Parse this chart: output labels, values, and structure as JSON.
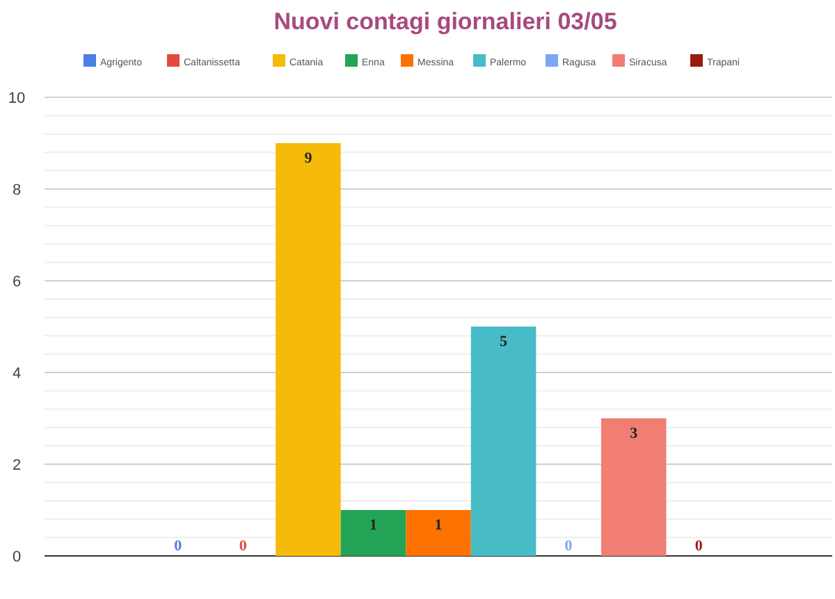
{
  "chart_data": {
    "type": "bar",
    "title": "Nuovi contagi giornalieri 03/05",
    "categories": [
      null
    ],
    "series": [
      {
        "name": "Agrigento",
        "color": "#4a7fe6",
        "values": [
          0
        ]
      },
      {
        "name": "Caltanissetta",
        "color": "#e5493c",
        "values": [
          0
        ]
      },
      {
        "name": "Catania",
        "color": "#f6bb0a",
        "values": [
          9
        ]
      },
      {
        "name": "Enna",
        "color": "#24a456",
        "values": [
          1
        ]
      },
      {
        "name": "Messina",
        "color": "#fd7200",
        "values": [
          1
        ]
      },
      {
        "name": "Palermo",
        "color": "#47bcc6",
        "values": [
          5
        ]
      },
      {
        "name": "Ragusa",
        "color": "#7ea6f4",
        "values": [
          0
        ]
      },
      {
        "name": "Siracusa",
        "color": "#f07e72",
        "values": [
          3
        ]
      },
      {
        "name": "Trapani",
        "color": "#9b1c0f",
        "values": [
          0
        ]
      }
    ],
    "ylim": [
      0,
      10
    ],
    "yticks": [
      0,
      {
        "value": 0.4,
        "label": null
      },
      {
        "value": 0.8,
        "label": null
      },
      {
        "value": 1.2,
        "label": null
      },
      {
        "value": 1.6,
        "label": null
      },
      2,
      {
        "value": 2.4,
        "label": null
      },
      {
        "value": 2.8,
        "label": null
      },
      {
        "value": 3.2,
        "label": null
      },
      {
        "value": 3.6,
        "label": null
      },
      4,
      {
        "value": 4.4,
        "label": null
      },
      {
        "value": 4.8,
        "label": null
      },
      {
        "value": 5.2,
        "label": null
      },
      {
        "value": 5.6,
        "label": null
      },
      6,
      {
        "value": 6.4,
        "label": null
      },
      {
        "value": 6.8,
        "label": null
      },
      {
        "value": 7.2,
        "label": null
      },
      {
        "value": 7.6,
        "label": null
      },
      8,
      {
        "value": 8.4,
        "label": null
      },
      {
        "value": 8.8,
        "label": null
      },
      {
        "value": 9.2,
        "label": null
      },
      {
        "value": 9.6,
        "label": null
      },
      10
    ],
    "grid": true,
    "legend": "top",
    "data_labels": true
  }
}
